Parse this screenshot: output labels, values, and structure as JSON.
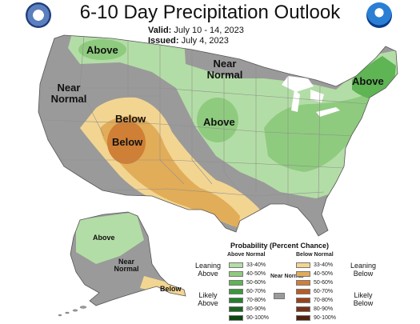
{
  "header": {
    "title": "6-10 Day Precipitation Outlook",
    "valid_label": "Valid:",
    "valid_value": "July 10 - 14, 2023",
    "issued_label": "Issued:",
    "issued_value": "July 4, 2023"
  },
  "logos": {
    "left": "commerce-department-seal-icon",
    "right": "noaa-logo-icon"
  },
  "map_labels": {
    "above_northwest": "Above",
    "near_normal_north": "Near Normal",
    "near_normal_west": "Near Normal",
    "above_midwest": "Above",
    "above_northeast": "Above",
    "below_outer": "Below",
    "below_inner": "Below",
    "above_alaska": "Above",
    "near_normal_alaska": "Near Normal",
    "below_alaska": "Below"
  },
  "legend": {
    "title": "Probability (Percent Chance)",
    "above_header": "Above Normal",
    "below_header": "Below Normal",
    "near_header": "Near Normal",
    "leaning_above": "Leaning Above",
    "likely_above": "Likely Above",
    "leaning_below": "Leaning Below",
    "likely_below": "Likely Below",
    "above_bins": [
      {
        "label": "33-40%",
        "color": "#b3dda6"
      },
      {
        "label": "40-50%",
        "color": "#8ecb7e"
      },
      {
        "label": "50-60%",
        "color": "#5fb454"
      },
      {
        "label": "60-70%",
        "color": "#3a9a3a"
      },
      {
        "label": "70-80%",
        "color": "#24802b"
      },
      {
        "label": "80-90%",
        "color": "#17651e"
      },
      {
        "label": "90-100%",
        "color": "#0b4511"
      }
    ],
    "below_bins": [
      {
        "label": "33-40%",
        "color": "#f3d592"
      },
      {
        "label": "40-50%",
        "color": "#e2ad58"
      },
      {
        "label": "50-60%",
        "color": "#cf7f36"
      },
      {
        "label": "60-70%",
        "color": "#b85c25"
      },
      {
        "label": "70-80%",
        "color": "#97441d"
      },
      {
        "label": "80-90%",
        "color": "#743315"
      },
      {
        "label": "90-100%",
        "color": "#4e220d"
      }
    ],
    "near_normal_color": "#9a9a9a"
  },
  "colors": {
    "ocean": "#ffffff",
    "great_lakes": "#ffffff",
    "state_lines": "#8f8f8f"
  }
}
